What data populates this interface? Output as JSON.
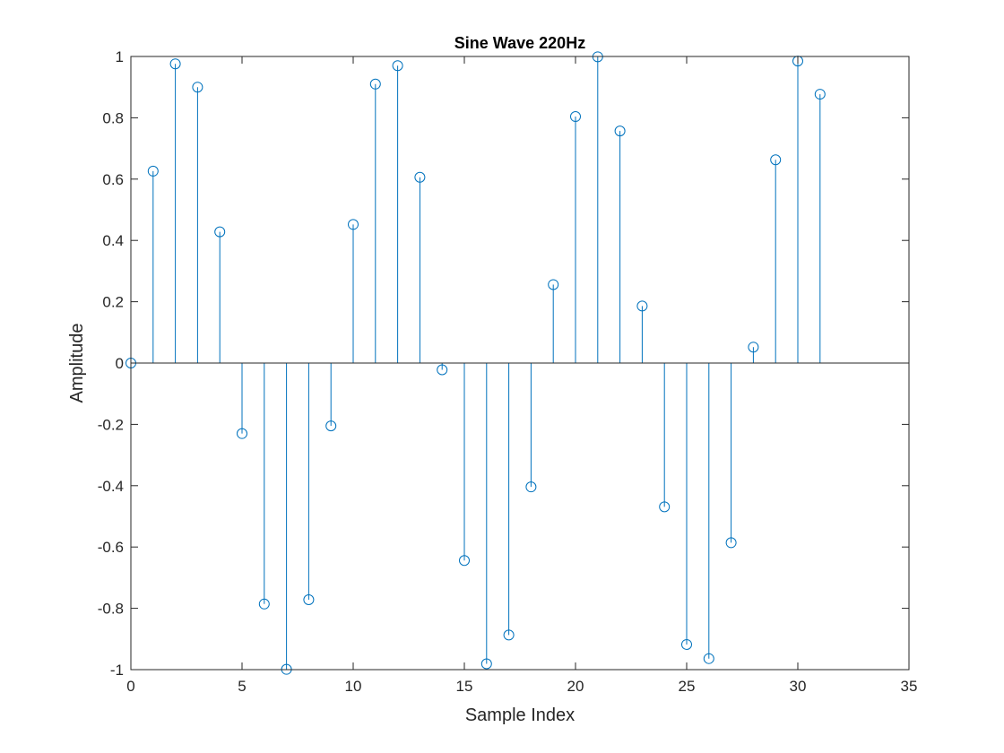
{
  "chart_data": {
    "type": "stem",
    "title": "Sine Wave 220Hz",
    "xlabel": "Sample Index",
    "ylabel": "Amplitude",
    "xlim": [
      0,
      35
    ],
    "ylim": [
      -1,
      1
    ],
    "xticks": [
      0,
      5,
      10,
      15,
      20,
      25,
      30,
      35
    ],
    "yticks": [
      -1,
      -0.8,
      -0.6,
      -0.4,
      -0.2,
      0,
      0.2,
      0.4,
      0.6,
      0.8,
      1
    ],
    "grid": false,
    "series": [
      {
        "color": "#0072BD",
        "x": [
          0,
          1,
          2,
          3,
          4,
          5,
          6,
          7,
          8,
          9,
          10,
          11,
          12,
          13,
          14,
          15,
          16,
          17,
          18,
          19,
          20,
          21,
          22,
          23,
          24,
          25,
          26,
          27,
          28,
          29,
          30,
          31
        ],
        "y": [
          0,
          0.626,
          0.976,
          0.9,
          0.428,
          -0.23,
          -0.786,
          -0.999,
          -0.772,
          -0.205,
          0.452,
          0.91,
          0.97,
          0.606,
          -0.022,
          -0.644,
          -0.981,
          -0.887,
          -0.404,
          0.256,
          0.804,
          0.999,
          0.757,
          0.186,
          -0.469,
          -0.918,
          -0.964,
          -0.586,
          0.052,
          0.663,
          0.985,
          0.877
        ]
      }
    ]
  }
}
